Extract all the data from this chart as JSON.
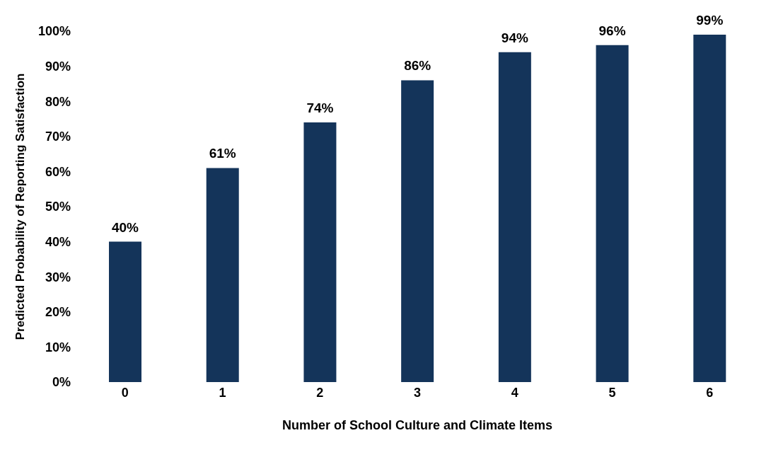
{
  "chart_data": {
    "type": "bar",
    "xlabel": "Number of School Culture and Climate Items",
    "ylabel": "Predicted Probability of Reporting Satisfaction",
    "categories": [
      "0",
      "1",
      "2",
      "3",
      "4",
      "5",
      "6"
    ],
    "values": [
      40,
      61,
      74,
      86,
      94,
      96,
      99
    ],
    "value_labels": [
      "40%",
      "61%",
      "74%",
      "86%",
      "94%",
      "96%",
      "99%"
    ],
    "color": "#14345a",
    "ylim": [
      0,
      100
    ],
    "yticks": [
      {
        "value": 0,
        "label": "0%"
      },
      {
        "value": 10,
        "label": "10%"
      },
      {
        "value": 20,
        "label": "20%"
      },
      {
        "value": 30,
        "label": "30%"
      },
      {
        "value": 40,
        "label": "40%"
      },
      {
        "value": 50,
        "label": "50%"
      },
      {
        "value": 60,
        "label": "60%"
      },
      {
        "value": 70,
        "label": "70%"
      },
      {
        "value": 80,
        "label": "80%"
      },
      {
        "value": 90,
        "label": "90%"
      },
      {
        "value": 100,
        "label": "100%"
      }
    ],
    "grid": false,
    "legend": false
  }
}
